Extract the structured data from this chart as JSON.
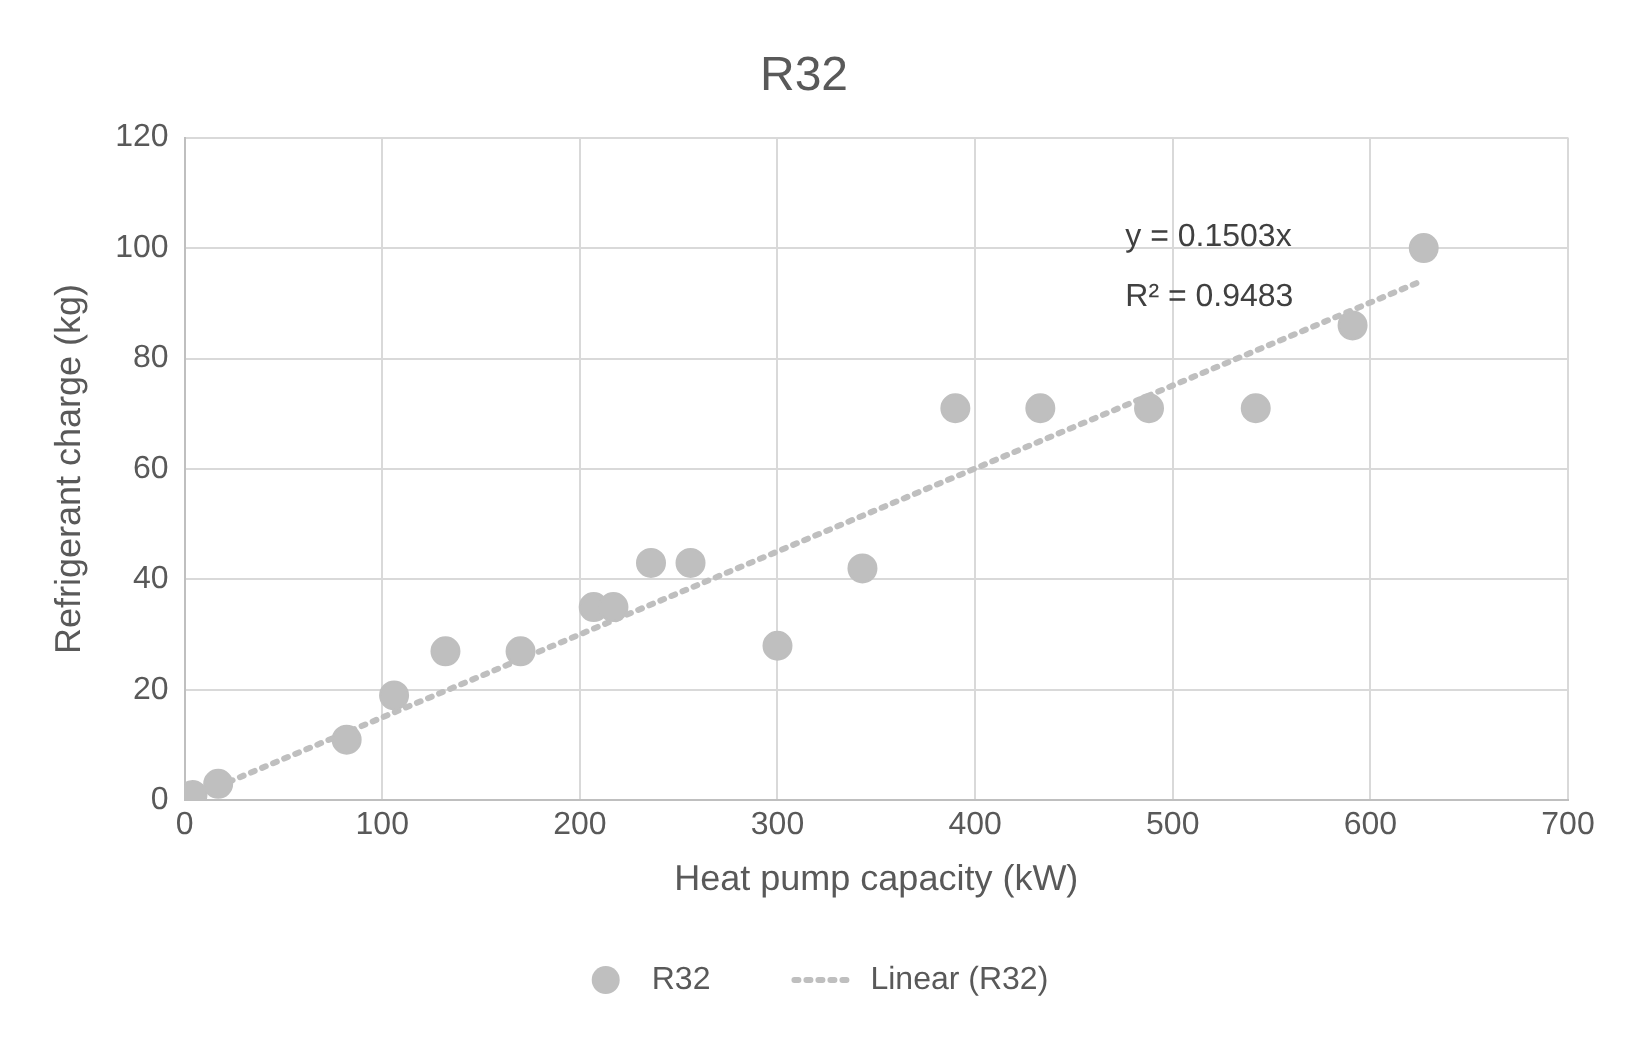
{
  "chart_data": {
    "type": "scatter",
    "title": "R32",
    "xlabel": "Heat pump capacity (kW)",
    "ylabel": "Refrigerant charge (kg)",
    "xlim": [
      0,
      700
    ],
    "xticks": [
      0,
      100,
      200,
      300,
      400,
      500,
      600,
      700
    ],
    "ylim": [
      0,
      120
    ],
    "yticks": [
      0,
      20,
      40,
      60,
      80,
      100,
      120
    ],
    "grid": true,
    "legend": "bottom",
    "marker": "circle",
    "series": [
      {
        "name": "R32",
        "type": "scatter",
        "color": "#bfbfbf",
        "x": [
          4,
          17,
          82,
          106,
          132,
          170,
          207,
          217,
          236,
          256,
          300,
          343,
          390,
          433,
          488,
          542,
          591,
          627
        ],
        "values": [
          1,
          3,
          11,
          19,
          27,
          27,
          35,
          35,
          43,
          43,
          28,
          42,
          71,
          71,
          71,
          71,
          86,
          100
        ]
      },
      {
        "name": "Linear (R32)",
        "type": "line",
        "color": "#bfbfbf",
        "line_style": "dotted",
        "marker": "none",
        "x": [
          0,
          627
        ],
        "values": [
          0,
          94.2
        ]
      }
    ],
    "annotations": [
      "y = 0.1503x",
      "R² = 0.9483"
    ]
  }
}
